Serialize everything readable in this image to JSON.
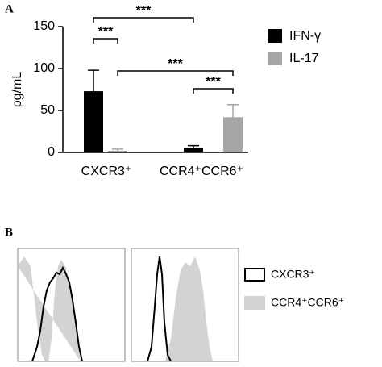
{
  "chart_data": {
    "type": "bar",
    "panel_a_label": "A",
    "panel_b_label": "B",
    "y_label": "pg/mL",
    "categories": [
      "CXCR3⁺",
      "CCR4⁺CCR6⁺"
    ],
    "series": [
      {
        "name": "IFN-γ",
        "color": "#000000",
        "values": [
          73,
          5
        ],
        "errors": [
          25,
          3
        ]
      },
      {
        "name": "IL-17",
        "color": "#a6a6a6",
        "values": [
          2,
          42
        ],
        "errors": [
          2,
          15
        ]
      }
    ],
    "ylim": [
      0,
      150
    ],
    "yticks": [
      0,
      50,
      100,
      150
    ],
    "annotations": [
      "***",
      "***",
      "***",
      "***"
    ],
    "histogram_legend": [
      {
        "name": "CXCR3⁺",
        "color": "#000000"
      },
      {
        "name": "CCR4⁺CCR6⁺",
        "color": "#d3d3d3"
      }
    ]
  }
}
